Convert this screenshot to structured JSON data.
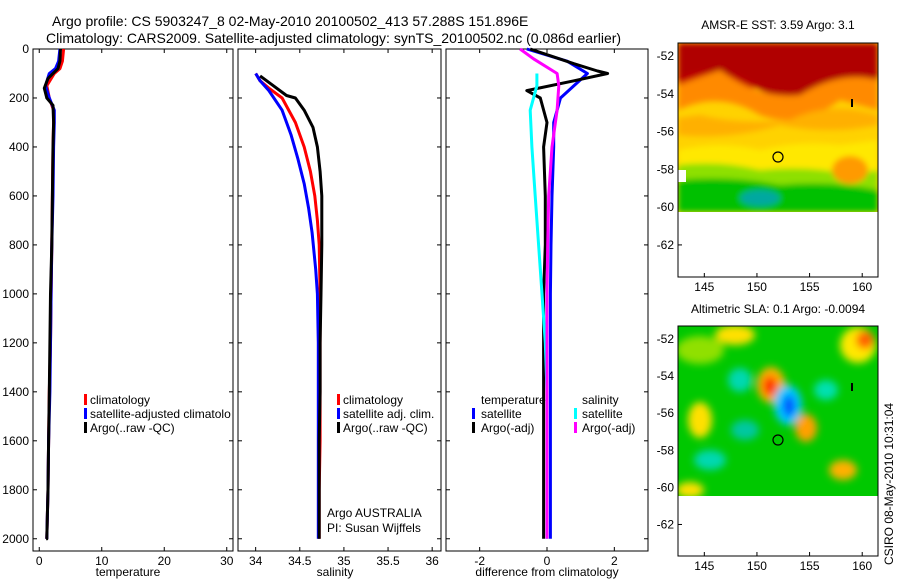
{
  "title_line1": "Argo profile: CS 5903247_8 02-May-2010 20100502_413 57.288S 151.896E",
  "title_line2": "Climatology: CARS2009. Satellite-adjusted climatology: synTS_20100502.nc (0.086d earlier)",
  "footer_note": "CSIRO 08-May-2010 10:31:04",
  "colors": {
    "climatology": "#ff0000",
    "satellite": "#0000ff",
    "argo": "#000000",
    "sat_sal": "#00ffff",
    "argo_sal": "#ff00ff"
  },
  "chart_data": [
    {
      "id": "temperature",
      "type": "line",
      "xlabel": "temperature",
      "xlim": [
        -1,
        31
      ],
      "ylim": [
        2050,
        0
      ],
      "xticks": [
        0,
        10,
        20,
        30
      ],
      "yticks": [
        0,
        200,
        400,
        600,
        800,
        1000,
        1200,
        1400,
        1600,
        1800,
        2000
      ],
      "legend": [
        "climatology",
        "satellite-adjusted climatolo",
        "Argo(..raw -QC)"
      ],
      "series": [
        {
          "name": "climatology",
          "color": "#ff0000",
          "x": [
            3.9,
            3.7,
            3.3,
            2.4,
            1.2,
            1.6,
            2.3,
            2.3,
            2.2,
            2.1,
            2.0,
            1.9,
            1.8,
            1.6,
            1.5,
            1.4,
            1.3,
            1.2,
            1.2
          ],
          "y": [
            0,
            50,
            80,
            100,
            150,
            200,
            250,
            300,
            400,
            600,
            800,
            1000,
            1200,
            1400,
            1600,
            1800,
            1900,
            2000,
            2000
          ]
        },
        {
          "name": "satellite-adjusted climatolo",
          "color": "#0000ff",
          "x": [
            3.3,
            3.1,
            2.6,
            1.6,
            1.0,
            1.6,
            2.4,
            2.4,
            2.3,
            2.2,
            2.0,
            1.9,
            1.8,
            1.7,
            1.5,
            1.4,
            1.3,
            1.2,
            1.2
          ],
          "y": [
            0,
            50,
            80,
            100,
            150,
            200,
            250,
            300,
            400,
            600,
            800,
            1000,
            1200,
            1400,
            1600,
            1800,
            1900,
            2000,
            2000
          ]
        },
        {
          "name": "Argo(..raw -QC)",
          "color": "#000000",
          "x": [
            3.4,
            3.3,
            3.0,
            1.4,
            0.8,
            1.2,
            2.2,
            2.3,
            2.2,
            2.1,
            2.0,
            1.8,
            1.7,
            1.6,
            1.5,
            1.4,
            1.3,
            1.2,
            1.1
          ],
          "y": [
            0,
            50,
            80,
            120,
            160,
            200,
            230,
            300,
            400,
            600,
            800,
            1000,
            1200,
            1400,
            1600,
            1800,
            1900,
            2000,
            2000
          ]
        }
      ]
    },
    {
      "id": "salinity",
      "type": "line",
      "xlabel": "salinity",
      "xlim": [
        33.8,
        36.1
      ],
      "ylim": [
        2050,
        0
      ],
      "xticks": [
        34,
        34.5,
        35,
        35.5,
        36
      ],
      "legend": [
        "climatology",
        "satellite adj. clim.",
        "Argo(..raw -QC)"
      ],
      "annotations": [
        "Argo AUSTRALIA",
        "PI: Susan Wijffels"
      ],
      "series": [
        {
          "name": "climatology",
          "color": "#ff0000",
          "x": [
            34.0,
            34.05,
            34.15,
            34.3,
            34.45,
            34.55,
            34.62,
            34.67,
            34.7,
            34.72,
            34.73,
            34.73,
            34.73,
            34.73,
            34.72,
            34.72
          ],
          "y": [
            100,
            130,
            160,
            200,
            300,
            400,
            500,
            600,
            700,
            800,
            1000,
            1200,
            1400,
            1600,
            1800,
            2000
          ]
        },
        {
          "name": "satellite adj. clim.",
          "color": "#0000ff",
          "x": [
            34.0,
            34.05,
            34.15,
            34.3,
            34.4,
            34.48,
            34.55,
            34.6,
            34.64,
            34.68,
            34.7,
            34.71,
            34.71,
            34.71,
            34.71,
            34.71
          ],
          "y": [
            100,
            130,
            170,
            250,
            350,
            450,
            550,
            650,
            750,
            900,
            1000,
            1200,
            1400,
            1600,
            1800,
            2000
          ]
        },
        {
          "name": "Argo(..raw -QC)",
          "color": "#000000",
          "x": [
            34.05,
            34.2,
            34.35,
            34.45,
            34.55,
            34.65,
            34.7,
            34.73,
            34.75,
            34.75,
            34.74,
            34.73,
            34.73,
            34.72,
            34.72
          ],
          "y": [
            110,
            150,
            190,
            200,
            250,
            320,
            400,
            500,
            600,
            800,
            1000,
            1200,
            1400,
            1600,
            2000
          ]
        }
      ]
    },
    {
      "id": "difference",
      "type": "line",
      "xlabel": "difference from climatology",
      "xlim": [
        -3,
        3
      ],
      "ylim": [
        2050,
        0
      ],
      "xticks": [
        -2,
        0,
        2
      ],
      "legend_headers": [
        "temperature",
        "salinity"
      ],
      "legend": [
        "satellite",
        "Argo(-adj)",
        "satellite",
        "Argo(-adj)"
      ],
      "series": [
        {
          "name": "temperature satellite",
          "color": "#0000ff",
          "x": [
            -0.6,
            0.6,
            1.2,
            0.8,
            0.4,
            0.2,
            0.2,
            0.15,
            0.12,
            0.1,
            0.1,
            0.1,
            0.1,
            0.1
          ],
          "y": [
            0,
            50,
            100,
            150,
            200,
            300,
            400,
            600,
            800,
            1000,
            1200,
            1400,
            1600,
            2000
          ]
        },
        {
          "name": "temperature Argo(-adj)",
          "color": "#000000",
          "x": [
            -0.5,
            0.8,
            1.5,
            1.8,
            0.8,
            -0.6,
            -0.2,
            0.0,
            -0.1,
            -0.05,
            -0.05,
            -0.1,
            -0.1,
            -0.1
          ],
          "y": [
            0,
            60,
            90,
            100,
            130,
            170,
            200,
            300,
            400,
            600,
            800,
            1000,
            1400,
            2000
          ]
        },
        {
          "name": "salinity satellite",
          "color": "#00ffff",
          "x": [
            -0.3,
            -0.3,
            -0.5,
            -0.45,
            -0.35,
            -0.25,
            -0.15,
            -0.05,
            0.0,
            0.0
          ],
          "y": [
            100,
            150,
            250,
            400,
            600,
            800,
            1000,
            1200,
            1400,
            2000
          ]
        },
        {
          "name": "salinity Argo(-adj)",
          "color": "#ff00ff",
          "x": [
            -0.8,
            -0.4,
            0.3,
            0.35,
            0.3,
            0.15,
            0.05,
            0.02,
            0.0,
            0.0
          ],
          "y": [
            0,
            40,
            100,
            150,
            250,
            400,
            600,
            800,
            1000,
            2000
          ]
        }
      ]
    },
    {
      "id": "sst_map",
      "type": "heatmap",
      "title": "AMSR-E SST: 3.59  Argo: 3.1",
      "xlim": [
        142.5,
        161.5
      ],
      "ylim": [
        -63.7,
        -51.3
      ],
      "xticks": [
        145,
        150,
        155,
        160
      ],
      "yticks": [
        -52,
        -54,
        -56,
        -58,
        -60,
        -62
      ],
      "data_extent_lat": [
        -60,
        -51.3
      ]
    },
    {
      "id": "sla_map",
      "type": "heatmap",
      "title": "Altimetric SLA: 0.1  Argo: -0.0094",
      "xlim": [
        142.5,
        161.5
      ],
      "ylim": [
        -63.7,
        -51.3
      ],
      "xticks": [
        145,
        150,
        155,
        160
      ],
      "yticks": [
        -52,
        -54,
        -56,
        -58,
        -60,
        -62
      ],
      "data_extent_lat": [
        -60,
        -51.3
      ]
    }
  ]
}
